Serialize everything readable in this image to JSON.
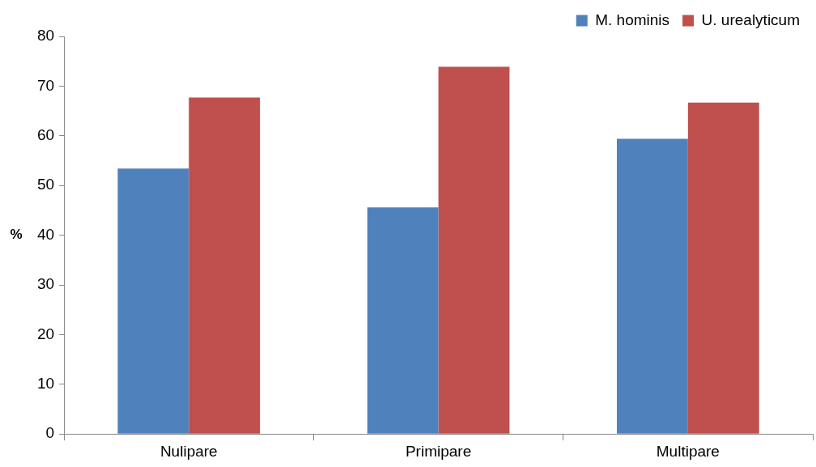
{
  "chart_data": {
    "type": "bar",
    "ylabel": "%",
    "categories": [
      "Nulipare",
      "Primipare",
      "Multipare"
    ],
    "series": [
      {
        "name": "M. hominis",
        "color": "#4f81bd",
        "values": [
          53.4,
          45.6,
          59.4
        ]
      },
      {
        "name": "U. urealyticum",
        "color": "#c0504d",
        "values": [
          67.7,
          73.9,
          66.7
        ]
      }
    ],
    "ylim": [
      0,
      80
    ],
    "yticks": [
      0,
      10,
      20,
      30,
      40,
      50,
      60,
      70,
      80
    ],
    "grid": false,
    "legend": "top right"
  }
}
